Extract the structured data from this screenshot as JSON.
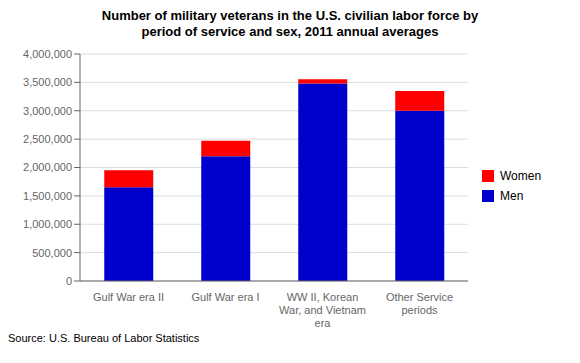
{
  "chart_data": {
    "type": "bar",
    "stacked": true,
    "title": "Number of military veterans in the U.S. civilian labor force by\nperiod of service and sex, 2011 annual averages",
    "categories": [
      "Gulf War era II",
      "Gulf War era I",
      "WW II, Korean\nWar, and Vietnam\nera",
      "Other Service\nperiods"
    ],
    "series": [
      {
        "name": "Men",
        "color": "#0000CD",
        "values": [
          1650000,
          2200000,
          3480000,
          3000000
        ]
      },
      {
        "name": "Women",
        "color": "#FF0000",
        "values": [
          300000,
          270000,
          75000,
          350000
        ]
      }
    ],
    "ylim": [
      0,
      4000000
    ],
    "yticks": [
      0,
      {
        "value": 500000,
        "label": "500,000"
      },
      {
        "value": 1000000,
        "label": "1,000,000"
      },
      {
        "value": 1500000,
        "label": "1,500,000"
      },
      {
        "value": 2000000,
        "label": "2,000,000"
      },
      {
        "value": 2500000,
        "label": "2,500,000"
      },
      {
        "value": 3000000,
        "label": "3,000,000"
      },
      {
        "value": 3500000,
        "label": "3,500,000"
      },
      {
        "value": 4000000,
        "label": "4,000,000"
      }
    ],
    "grid": true,
    "legend": "right",
    "annotations": [
      "Source: U.S. Bureau of Labor Statistics"
    ]
  }
}
